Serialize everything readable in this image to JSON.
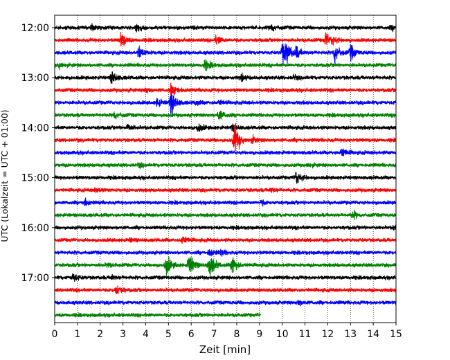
{
  "chart_data": {
    "type": "line",
    "title": "",
    "xlabel": "Zeit  [min]",
    "ylabel": "UTC (Lokalzeit = UTC + 01:00)",
    "xlim": [
      0,
      15
    ],
    "xticks": [
      "0",
      "1",
      "2",
      "3",
      "4",
      "5",
      "6",
      "7",
      "8",
      "9",
      "10",
      "11",
      "12",
      "13",
      "14",
      "15"
    ],
    "yticks": [
      "12:00",
      "13:00",
      "14:00",
      "15:00",
      "16:00",
      "17:00"
    ],
    "grid": "vertical dotted at each minute",
    "trace_interval_min": 15,
    "trace_colors": [
      "#000000",
      "#ff0000",
      "#0000ff",
      "#008000"
    ],
    "traces": [
      {
        "start": "12:00",
        "color": "#000000",
        "events": [
          [
            1.6,
            0.4
          ],
          [
            3.6,
            0.6
          ],
          [
            9.5,
            0.6
          ],
          [
            14.8,
            0.3
          ]
        ]
      },
      {
        "start": "12:15",
        "color": "#ff0000",
        "events": [
          [
            2.9,
            1.2
          ],
          [
            7.1,
            0.6
          ],
          [
            11.9,
            1.0
          ],
          [
            12.2,
            0.5
          ]
        ]
      },
      {
        "start": "12:30",
        "color": "#0000ff",
        "events": [
          [
            3.7,
            0.9
          ],
          [
            10.0,
            1.6
          ],
          [
            10.2,
            1.1
          ],
          [
            10.6,
            0.8
          ],
          [
            12.3,
            1.5
          ],
          [
            13.0,
            1.1
          ]
        ]
      },
      {
        "start": "12:45",
        "color": "#008000",
        "events": [
          [
            0.2,
            0.4
          ],
          [
            6.6,
            0.7
          ]
        ]
      },
      {
        "start": "13:00",
        "color": "#000000",
        "events": [
          [
            2.5,
            0.9
          ],
          [
            8.2,
            0.4
          ],
          [
            10.5,
            0.3
          ]
        ]
      },
      {
        "start": "13:15",
        "color": "#ff0000",
        "events": [
          [
            4.0,
            0.4
          ],
          [
            5.1,
            0.6
          ],
          [
            5.3,
            0.4
          ]
        ]
      },
      {
        "start": "13:30",
        "color": "#0000ff",
        "events": [
          [
            4.5,
            0.6
          ],
          [
            5.1,
            1.8
          ],
          [
            6.2,
            0.3
          ],
          [
            7.2,
            0.3
          ]
        ]
      },
      {
        "start": "13:45",
        "color": "#008000",
        "events": [
          [
            2.6,
            0.6
          ],
          [
            7.2,
            0.8
          ]
        ]
      },
      {
        "start": "14:00",
        "color": "#000000",
        "events": [
          [
            3.2,
            0.5
          ],
          [
            6.3,
            0.6
          ],
          [
            7.8,
            0.4
          ]
        ]
      },
      {
        "start": "14:15",
        "color": "#ff0000",
        "events": [
          [
            7.9,
            2.4
          ],
          [
            8.7,
            0.4
          ]
        ]
      },
      {
        "start": "14:30",
        "color": "#0000ff",
        "events": [
          [
            12.6,
            0.7
          ]
        ]
      },
      {
        "start": "14:45",
        "color": "#008000",
        "events": [
          [
            3.7,
            0.3
          ],
          [
            11.1,
            0.3
          ]
        ]
      },
      {
        "start": "15:00",
        "color": "#000000",
        "events": [
          [
            10.6,
            1.0
          ]
        ]
      },
      {
        "start": "15:15",
        "color": "#ff0000",
        "events": [
          [
            1.8,
            0.4
          ],
          [
            9.5,
            0.3
          ]
        ]
      },
      {
        "start": "15:30",
        "color": "#0000ff",
        "events": [
          [
            1.3,
            0.6
          ],
          [
            9.1,
            0.3
          ]
        ]
      },
      {
        "start": "15:45",
        "color": "#008000",
        "events": [
          [
            13.1,
            0.6
          ]
        ]
      },
      {
        "start": "16:00",
        "color": "#000000",
        "events": [
          [
            14.9,
            0.3
          ]
        ]
      },
      {
        "start": "16:15",
        "color": "#ff0000",
        "events": [
          [
            5.6,
            0.6
          ],
          [
            3.3,
            0.2
          ]
        ]
      },
      {
        "start": "16:30",
        "color": "#0000ff",
        "events": [
          [
            6.8,
            0.6
          ],
          [
            7.3,
            0.4
          ]
        ]
      },
      {
        "start": "16:45",
        "color": "#008000",
        "events": [
          [
            4.9,
            1.4
          ],
          [
            5.9,
            1.7
          ],
          [
            6.8,
            1.9
          ],
          [
            7.8,
            1.4
          ],
          [
            2.3,
            0.3
          ]
        ]
      },
      {
        "start": "17:00",
        "color": "#000000",
        "events": [
          [
            0.8,
            0.6
          ],
          [
            2.5,
            0.3
          ]
        ]
      },
      {
        "start": "17:15",
        "color": "#ff0000",
        "events": [
          [
            2.7,
            0.8
          ]
        ]
      },
      {
        "start": "17:30",
        "color": "#0000ff",
        "events": [
          [
            10.7,
            0.4
          ]
        ]
      },
      {
        "start": "17:45",
        "color": "#008000",
        "events": [],
        "end_min": 9.05
      }
    ]
  }
}
